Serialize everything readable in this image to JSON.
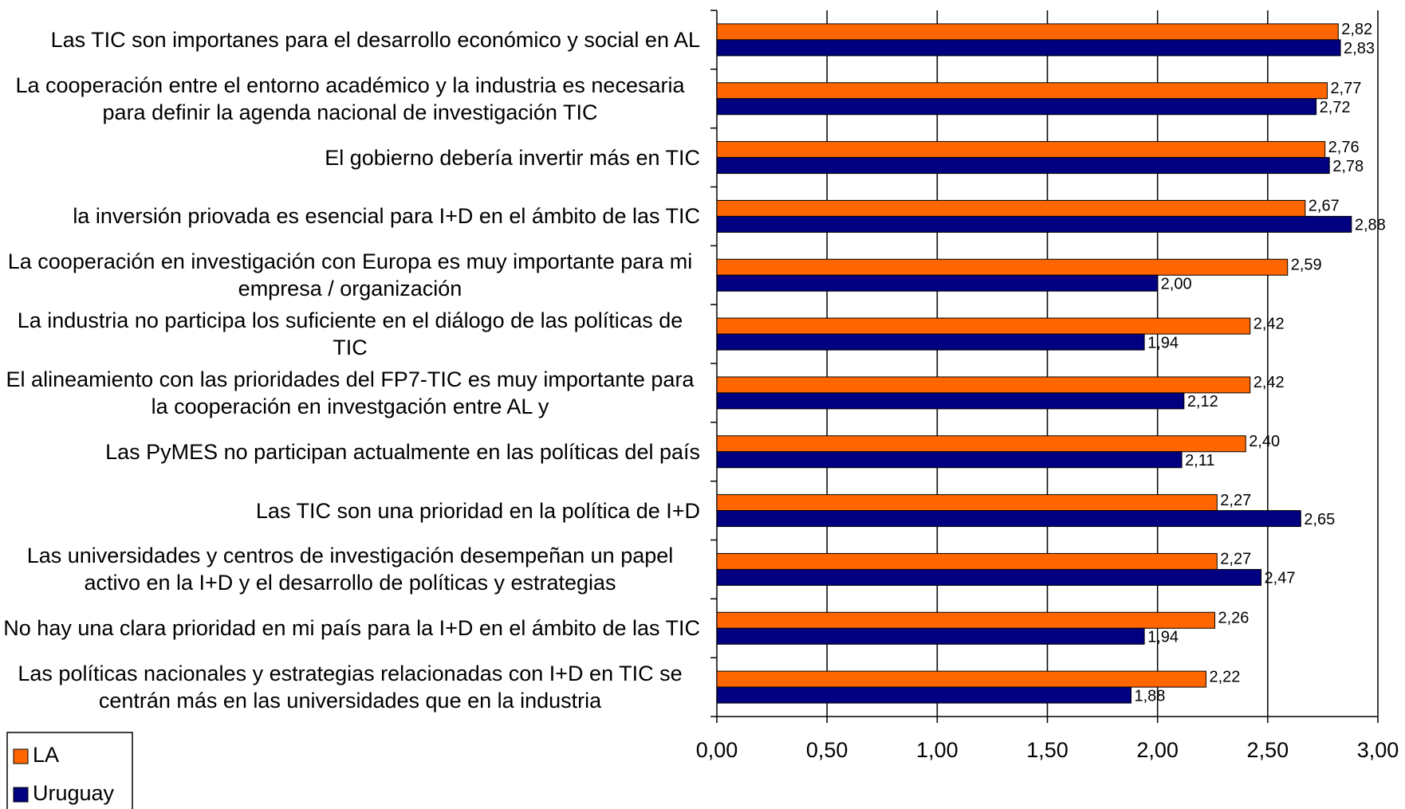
{
  "chart_data": {
    "type": "bar",
    "orientation": "horizontal",
    "categories": [
      "Las TIC son importanes para el desarrollo económico y social en AL",
      "La cooperación entre el entorno académico y la industria es necesaria para definir la agenda nacional de investigación TIC",
      "El gobierno debería invertir más en TIC",
      "la inversión priovada es esencial para I+D en el ámbito de las TIC",
      "La cooperación en investigación con Europa es muy importante para mi empresa / organización",
      "La industria no participa los suficiente en el diálogo de las políticas de TIC",
      "El alineamiento con las prioridades del FP7-TIC es muy importante para la cooperación en investgación entre AL y",
      "Las PyMES no participan actualmente en las políticas del país",
      "Las TIC son una prioridad en la política de I+D",
      "Las universidades y centros de investigación desempeñan un papel activo en la I+D y el desarrollo de políticas y estrategias",
      "No hay una clara prioridad en mi país para la I+D en el ámbito de las TIC",
      "Las políticas nacionales y estrategias relacionadas con I+D  en TIC se centrán más en las universidades que en la industria"
    ],
    "series": [
      {
        "name": "LA",
        "color": "#ff6600",
        "values": [
          2.82,
          2.77,
          2.76,
          2.67,
          2.59,
          2.42,
          2.42,
          2.4,
          2.27,
          2.27,
          2.26,
          2.22
        ],
        "value_labels": [
          "2,82",
          "2,77",
          "2,76",
          "2,67",
          "2,59",
          "2,42",
          "2,42",
          "2,40",
          "2,27",
          "2,27",
          "2,26",
          "2,22"
        ]
      },
      {
        "name": "Uruguay",
        "color": "#000080",
        "values": [
          2.83,
          2.72,
          2.78,
          2.88,
          2.0,
          1.94,
          2.12,
          2.11,
          2.65,
          2.47,
          1.94,
          1.88
        ],
        "value_labels": [
          "2,83",
          "2,72",
          "2,78",
          "2,88",
          "2,00",
          "1,94",
          "2,12",
          "2,11",
          "2,65",
          "2,47",
          "1,94",
          "1,88"
        ]
      }
    ],
    "xlim": [
      0,
      3
    ],
    "xticks": [
      {
        "value": 0,
        "label": "0,00"
      },
      {
        "value": 0.5,
        "label": "0,50"
      },
      {
        "value": 1,
        "label": "1,00"
      },
      {
        "value": 1.5,
        "label": "1,50"
      },
      {
        "value": 2,
        "label": "2,00"
      },
      {
        "value": 2.5,
        "label": "2,50"
      },
      {
        "value": 3,
        "label": "3,00"
      }
    ],
    "grid": true,
    "legend": "bottom-left"
  }
}
